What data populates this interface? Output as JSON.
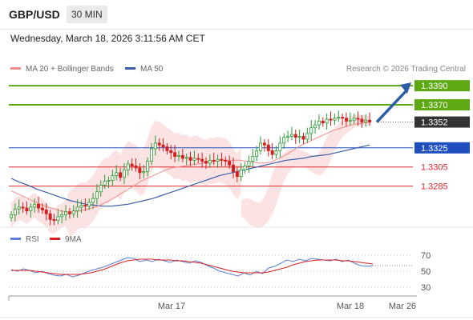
{
  "header": {
    "symbol": "GBP/USD",
    "timeframe": "30 MIN",
    "datetime": "Wednesday, March 18, 2026 3:11:56 AM CET"
  },
  "legend": {
    "ma20": "MA 20 + Bollinger Bands",
    "ma50": "MA 50",
    "copyright": "Research © 2026 Trading Central",
    "rsi": "RSI",
    "ma9": "9MA"
  },
  "colors": {
    "up": "#2a9a35",
    "down": "#d42020",
    "ma20": "#f28a8a",
    "ma50": "#3b5ea8",
    "band": "#fbd9d9",
    "resistance": "#5ea814",
    "pivot": "#1f4fbf",
    "support": "#e0262b",
    "current": "#333333",
    "arrow": "#2d5fa8",
    "rsi": "#5b7fd6",
    "rsi_ma": "#d82020"
  },
  "chart_data": [
    {
      "type": "candlestick",
      "title": "GBP/USD",
      "ylim": [
        1.3252,
        1.3396
      ],
      "x_ticks": [
        "Mar 17",
        "Mar 18",
        "Mar 26"
      ],
      "levels": [
        {
          "value": 1.339,
          "label": "1.3390",
          "kind": "resistance"
        },
        {
          "value": 1.337,
          "label": "1.3370",
          "kind": "resistance"
        },
        {
          "value": 1.3352,
          "label": "1.3352",
          "kind": "current"
        },
        {
          "value": 1.3325,
          "label": "1.3325",
          "kind": "pivot"
        },
        {
          "value": 1.3305,
          "label": "1.3305",
          "kind": "support"
        },
        {
          "value": 1.3285,
          "label": "1.3285",
          "kind": "support"
        }
      ],
      "candles_close": [
        1.3255,
        1.3261,
        1.3263,
        1.3262,
        1.3259,
        1.3263,
        1.3266,
        1.3262,
        1.326,
        1.3256,
        1.325,
        1.3249,
        1.3253,
        1.3255,
        1.3258,
        1.3256,
        1.3259,
        1.3263,
        1.3265,
        1.3264,
        1.3268,
        1.3272,
        1.3279,
        1.3286,
        1.329,
        1.3291,
        1.3296,
        1.3299,
        1.3294,
        1.3302,
        1.3308,
        1.3306,
        1.3304,
        1.3299,
        1.33,
        1.3311,
        1.3324,
        1.333,
        1.3328,
        1.3326,
        1.3322,
        1.332,
        1.3316,
        1.3317,
        1.3314,
        1.3315,
        1.3312,
        1.3314,
        1.3313,
        1.3311,
        1.3309,
        1.3312,
        1.3311,
        1.3313,
        1.3312,
        1.3311,
        1.3307,
        1.33,
        1.3295,
        1.3302,
        1.3306,
        1.3311,
        1.3316,
        1.3322,
        1.333,
        1.3328,
        1.3322,
        1.3318,
        1.3322,
        1.333,
        1.3336,
        1.3337,
        1.3339,
        1.3336,
        1.3337,
        1.3334,
        1.334,
        1.3346,
        1.3349,
        1.3353,
        1.3351,
        1.3355,
        1.3354,
        1.3356,
        1.3357,
        1.3356,
        1.3353,
        1.3354,
        1.3356,
        1.3355,
        1.3352,
        1.3354,
        1.3352
      ],
      "ma20": [
        1.328,
        1.3277,
        1.3274,
        1.3271,
        1.3268,
        1.3265,
        1.3263,
        1.3261,
        1.3259,
        1.3258,
        1.3258,
        1.3259,
        1.326,
        1.3262,
        1.3264,
        1.3267,
        1.327,
        1.3274,
        1.3278,
        1.3282,
        1.3286,
        1.329,
        1.3293,
        1.3296,
        1.3299,
        1.3302,
        1.3304,
        1.3305,
        1.3306,
        1.3307,
        1.3308,
        1.3309,
        1.331,
        1.3311,
        1.3312,
        1.3312,
        1.3312,
        1.3312,
        1.3311,
        1.331,
        1.3309,
        1.3309,
        1.331,
        1.3313,
        1.3316,
        1.332,
        1.3324,
        1.3328,
        1.3331,
        1.3334,
        1.3337,
        1.334,
        1.3343,
        1.3345,
        1.3347,
        1.3349,
        1.335,
        1.3351,
        1.3352
      ],
      "ma20_start": 34,
      "ma50": [
        1.3293,
        1.3289,
        1.3286,
        1.3282,
        1.3279,
        1.3276,
        1.3273,
        1.327,
        1.3268,
        1.3266,
        1.3265,
        1.3264,
        1.3264,
        1.3265,
        1.3266,
        1.3268,
        1.327,
        1.3272,
        1.3275,
        1.3278,
        1.3281,
        1.3284,
        1.3287,
        1.329,
        1.3293,
        1.3296,
        1.3298,
        1.33,
        1.3302,
        1.3304,
        1.3306,
        1.3308,
        1.331,
        1.3312,
        1.3313,
        1.3314,
        1.3316,
        1.3317,
        1.3318,
        1.332,
        1.3322,
        1.3324,
        1.3326,
        1.3328
      ],
      "ma50_start": 0,
      "band_upper": [
        1.327,
        1.3272,
        1.3272,
        1.327,
        1.3268,
        1.3268,
        1.3274,
        1.3284,
        1.3298,
        1.3308,
        1.3316,
        1.332,
        1.3323,
        1.3324,
        1.3324,
        1.3323,
        1.3322,
        1.332,
        1.3318,
        1.3317,
        1.332,
        1.3328,
        1.3336,
        1.3342,
        1.3346,
        1.335,
        1.3353,
        1.3356,
        1.3358,
        1.3359,
        1.336,
        1.336,
        1.3359,
        1.3358
      ],
      "band_lower": [
        1.3254,
        1.325,
        1.3245,
        1.3243,
        1.3241,
        1.3241,
        1.3244,
        1.3248,
        1.3255,
        1.3265,
        1.3278,
        1.329,
        1.3298,
        1.3303,
        1.3306,
        1.3306,
        1.3305,
        1.3303,
        1.33,
        1.3298,
        1.3296,
        1.3298,
        1.3304,
        1.3312,
        1.3322,
        1.333,
        1.3336,
        1.334,
        1.3343,
        1.3346,
        1.3348,
        1.3348,
        1.3348,
        1.3348
      ]
    },
    {
      "type": "line",
      "title": "RSI",
      "ylim": [
        25,
        75
      ],
      "y_ticks": [
        70,
        50,
        30
      ],
      "series": [
        {
          "name": "RSI",
          "values": [
            52,
            50,
            53,
            51,
            48,
            50,
            47,
            45,
            44,
            46,
            43,
            45,
            48,
            51,
            53,
            55,
            58,
            61,
            64,
            67,
            66,
            62,
            64,
            62,
            65,
            63,
            61,
            64,
            62,
            60,
            63,
            61,
            57,
            54,
            50,
            48,
            46,
            44,
            48,
            45,
            50,
            47,
            54,
            56,
            60,
            64,
            62,
            65,
            63,
            66,
            65,
            64,
            63,
            65,
            62,
            64,
            60,
            57,
            56,
            57
          ]
        },
        {
          "name": "9MA",
          "values": [
            51,
            51,
            51,
            51,
            50,
            49,
            48,
            47,
            46,
            46,
            46,
            46,
            47,
            48,
            50,
            52,
            55,
            58,
            61,
            63,
            64,
            65,
            65,
            65,
            64,
            64,
            64,
            63,
            63,
            62,
            61,
            60,
            58,
            56,
            54,
            52,
            50,
            49,
            48,
            48,
            48,
            48,
            49,
            51,
            53,
            55,
            58,
            60,
            62,
            63,
            64,
            64,
            64,
            64,
            63,
            63,
            62,
            61,
            60,
            59
          ]
        }
      ]
    }
  ]
}
